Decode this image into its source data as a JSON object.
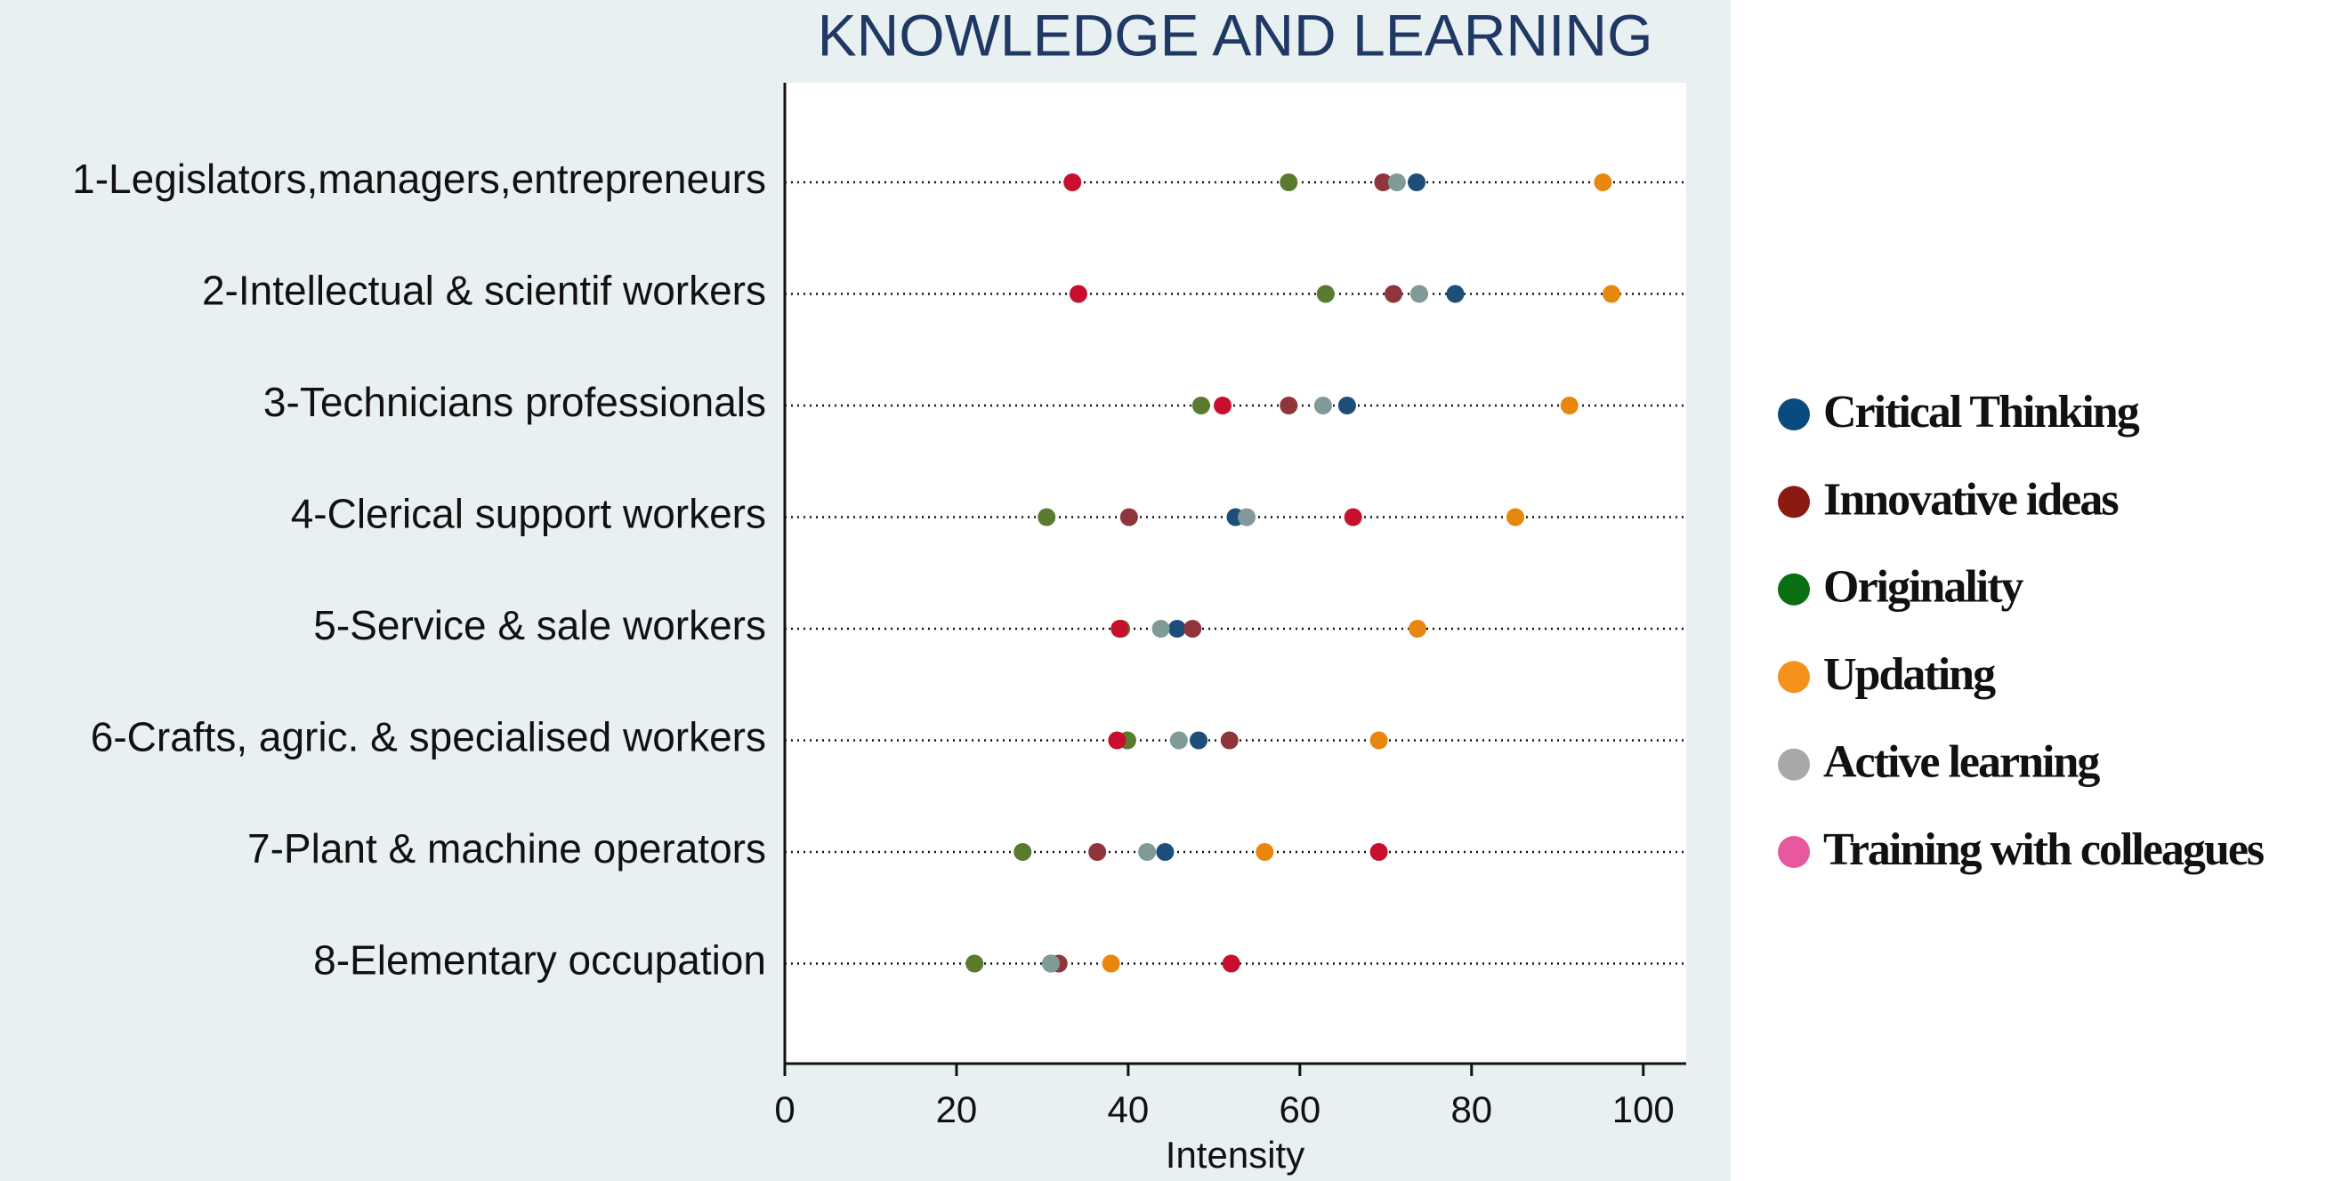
{
  "chart_data": {
    "type": "dot",
    "title": "KNOWLEDGE AND LEARNING",
    "xlabel": "Intensity",
    "categories": [
      "1-Legislators,managers,entrepreneurs",
      "2-Intellectual & scientif workers",
      "3-Technicians professionals",
      "4-Clerical support workers",
      "5-Service & sale workers",
      "6-Crafts, agric. & specialised workers",
      "7-Plant & machine operators",
      "8-Elementary occupation"
    ],
    "xlim": [
      0,
      105
    ],
    "xticks": [
      0,
      20,
      40,
      60,
      80,
      100
    ],
    "legend": "right",
    "series": [
      {
        "name": "Critical Thinking",
        "color": "#1d4e79",
        "legend_color": "#0b4a7c",
        "values": [
          73.6,
          78.1,
          65.5,
          52.5,
          45.7,
          48.2,
          44.3,
          31
        ]
      },
      {
        "name": "Innovative ideas",
        "color": "#90353b",
        "legend_color": "#8b1a10",
        "values": [
          69.7,
          70.9,
          58.7,
          40.1,
          47.5,
          51.8,
          36.4,
          31.9
        ]
      },
      {
        "name": "Originality",
        "color": "#5a7a2e",
        "legend_color": "#0a6e12",
        "values": [
          58.7,
          63,
          48.5,
          30.5,
          39.2,
          39.9,
          27.7,
          22.1
        ]
      },
      {
        "name": "Updating",
        "color": "#e8870e",
        "legend_color": "#f5921b",
        "values": [
          95.3,
          96.3,
          91.4,
          85.1,
          73.7,
          69.2,
          55.9,
          38
        ]
      },
      {
        "name": "Active learning",
        "color": "#7f9a98",
        "legend_color": "#a8a8a8",
        "values": [
          71.3,
          73.9,
          62.7,
          53.8,
          43.8,
          45.9,
          42.2,
          31
        ]
      },
      {
        "name": "Training with colleagues",
        "color": "#c8102e",
        "legend_color": "#e8589f",
        "values": [
          33.5,
          34.2,
          51,
          66.2,
          39,
          38.7,
          69.2,
          52
        ]
      }
    ]
  }
}
